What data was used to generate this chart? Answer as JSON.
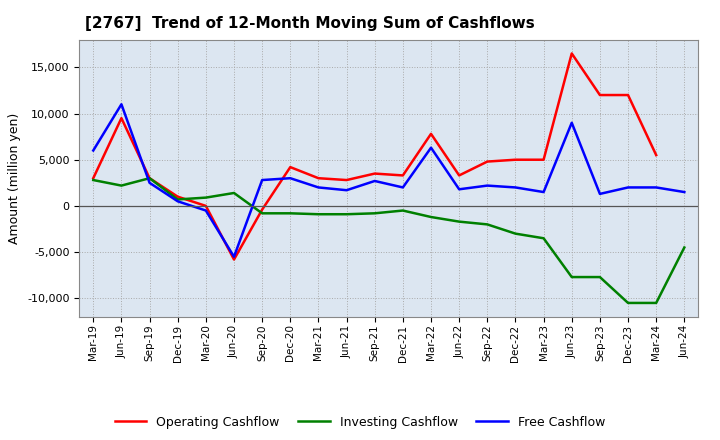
{
  "title": "[2767]  Trend of 12-Month Moving Sum of Cashflows",
  "ylabel": "Amount (million yen)",
  "x_labels": [
    "Mar-19",
    "Jun-19",
    "Sep-19",
    "Dec-19",
    "Mar-20",
    "Jun-20",
    "Sep-20",
    "Dec-20",
    "Mar-21",
    "Jun-21",
    "Sep-21",
    "Dec-21",
    "Mar-22",
    "Jun-22",
    "Sep-22",
    "Dec-22",
    "Mar-23",
    "Jun-23",
    "Sep-23",
    "Dec-23",
    "Mar-24",
    "Jun-24"
  ],
  "operating": [
    3000,
    9500,
    3000,
    1000,
    0,
    -5800,
    -400,
    4200,
    3000,
    2800,
    3500,
    3300,
    7800,
    3300,
    4800,
    5000,
    5000,
    16500,
    12000,
    12000,
    5500,
    null
  ],
  "investing": [
    2800,
    2200,
    3000,
    700,
    900,
    1400,
    -800,
    -800,
    -900,
    -900,
    -800,
    -500,
    -1200,
    -1700,
    -2000,
    -3000,
    -3500,
    -7700,
    -7700,
    -10500,
    -10500,
    -4500
  ],
  "free": [
    6000,
    11000,
    2500,
    500,
    -500,
    -5500,
    2800,
    3000,
    2000,
    1700,
    2700,
    2000,
    6300,
    1800,
    2200,
    2000,
    1500,
    9000,
    1300,
    2000,
    2000,
    1500
  ],
  "operating_color": "#ff0000",
  "investing_color": "#008000",
  "free_color": "#0000ff",
  "ylim": [
    -12000,
    18000
  ],
  "yticks": [
    -10000,
    -5000,
    0,
    5000,
    10000,
    15000
  ],
  "plot_bg_color": "#dce6f1",
  "fig_bg_color": "#ffffff",
  "grid_color": "#aaaaaa",
  "legend_labels": [
    "Operating Cashflow",
    "Investing Cashflow",
    "Free Cashflow"
  ]
}
